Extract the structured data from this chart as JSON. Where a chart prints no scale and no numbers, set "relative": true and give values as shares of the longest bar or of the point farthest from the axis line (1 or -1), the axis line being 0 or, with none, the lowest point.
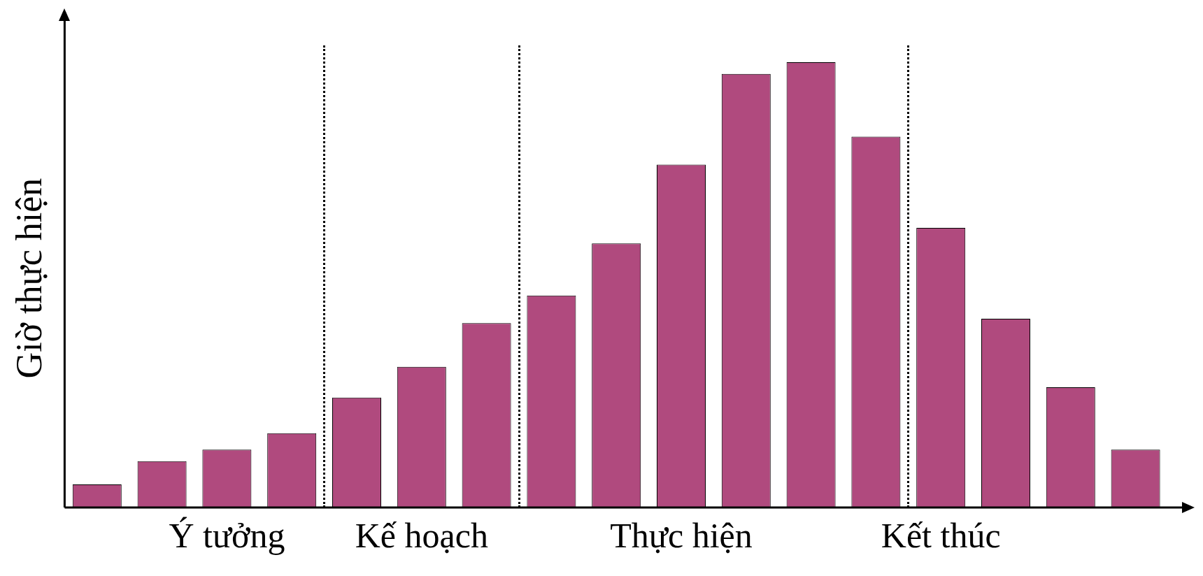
{
  "chart_data": {
    "type": "bar",
    "ylabel": "Giờ thực hiện",
    "relative": true,
    "tick_labels": "x",
    "categories": [
      null,
      null,
      "Ý tưởng",
      null,
      null,
      "Kế hoạch",
      null,
      null,
      null,
      "Thực hiện",
      null,
      null,
      null,
      "Kết thúc",
      null,
      null,
      null
    ],
    "values": [
      0.052,
      0.104,
      0.13,
      0.167,
      0.247,
      0.316,
      0.414,
      0.476,
      0.593,
      0.77,
      0.974,
      1,
      0.833,
      0.628,
      0.424,
      0.27,
      0.13
    ],
    "color": "#b04a7e"
  }
}
